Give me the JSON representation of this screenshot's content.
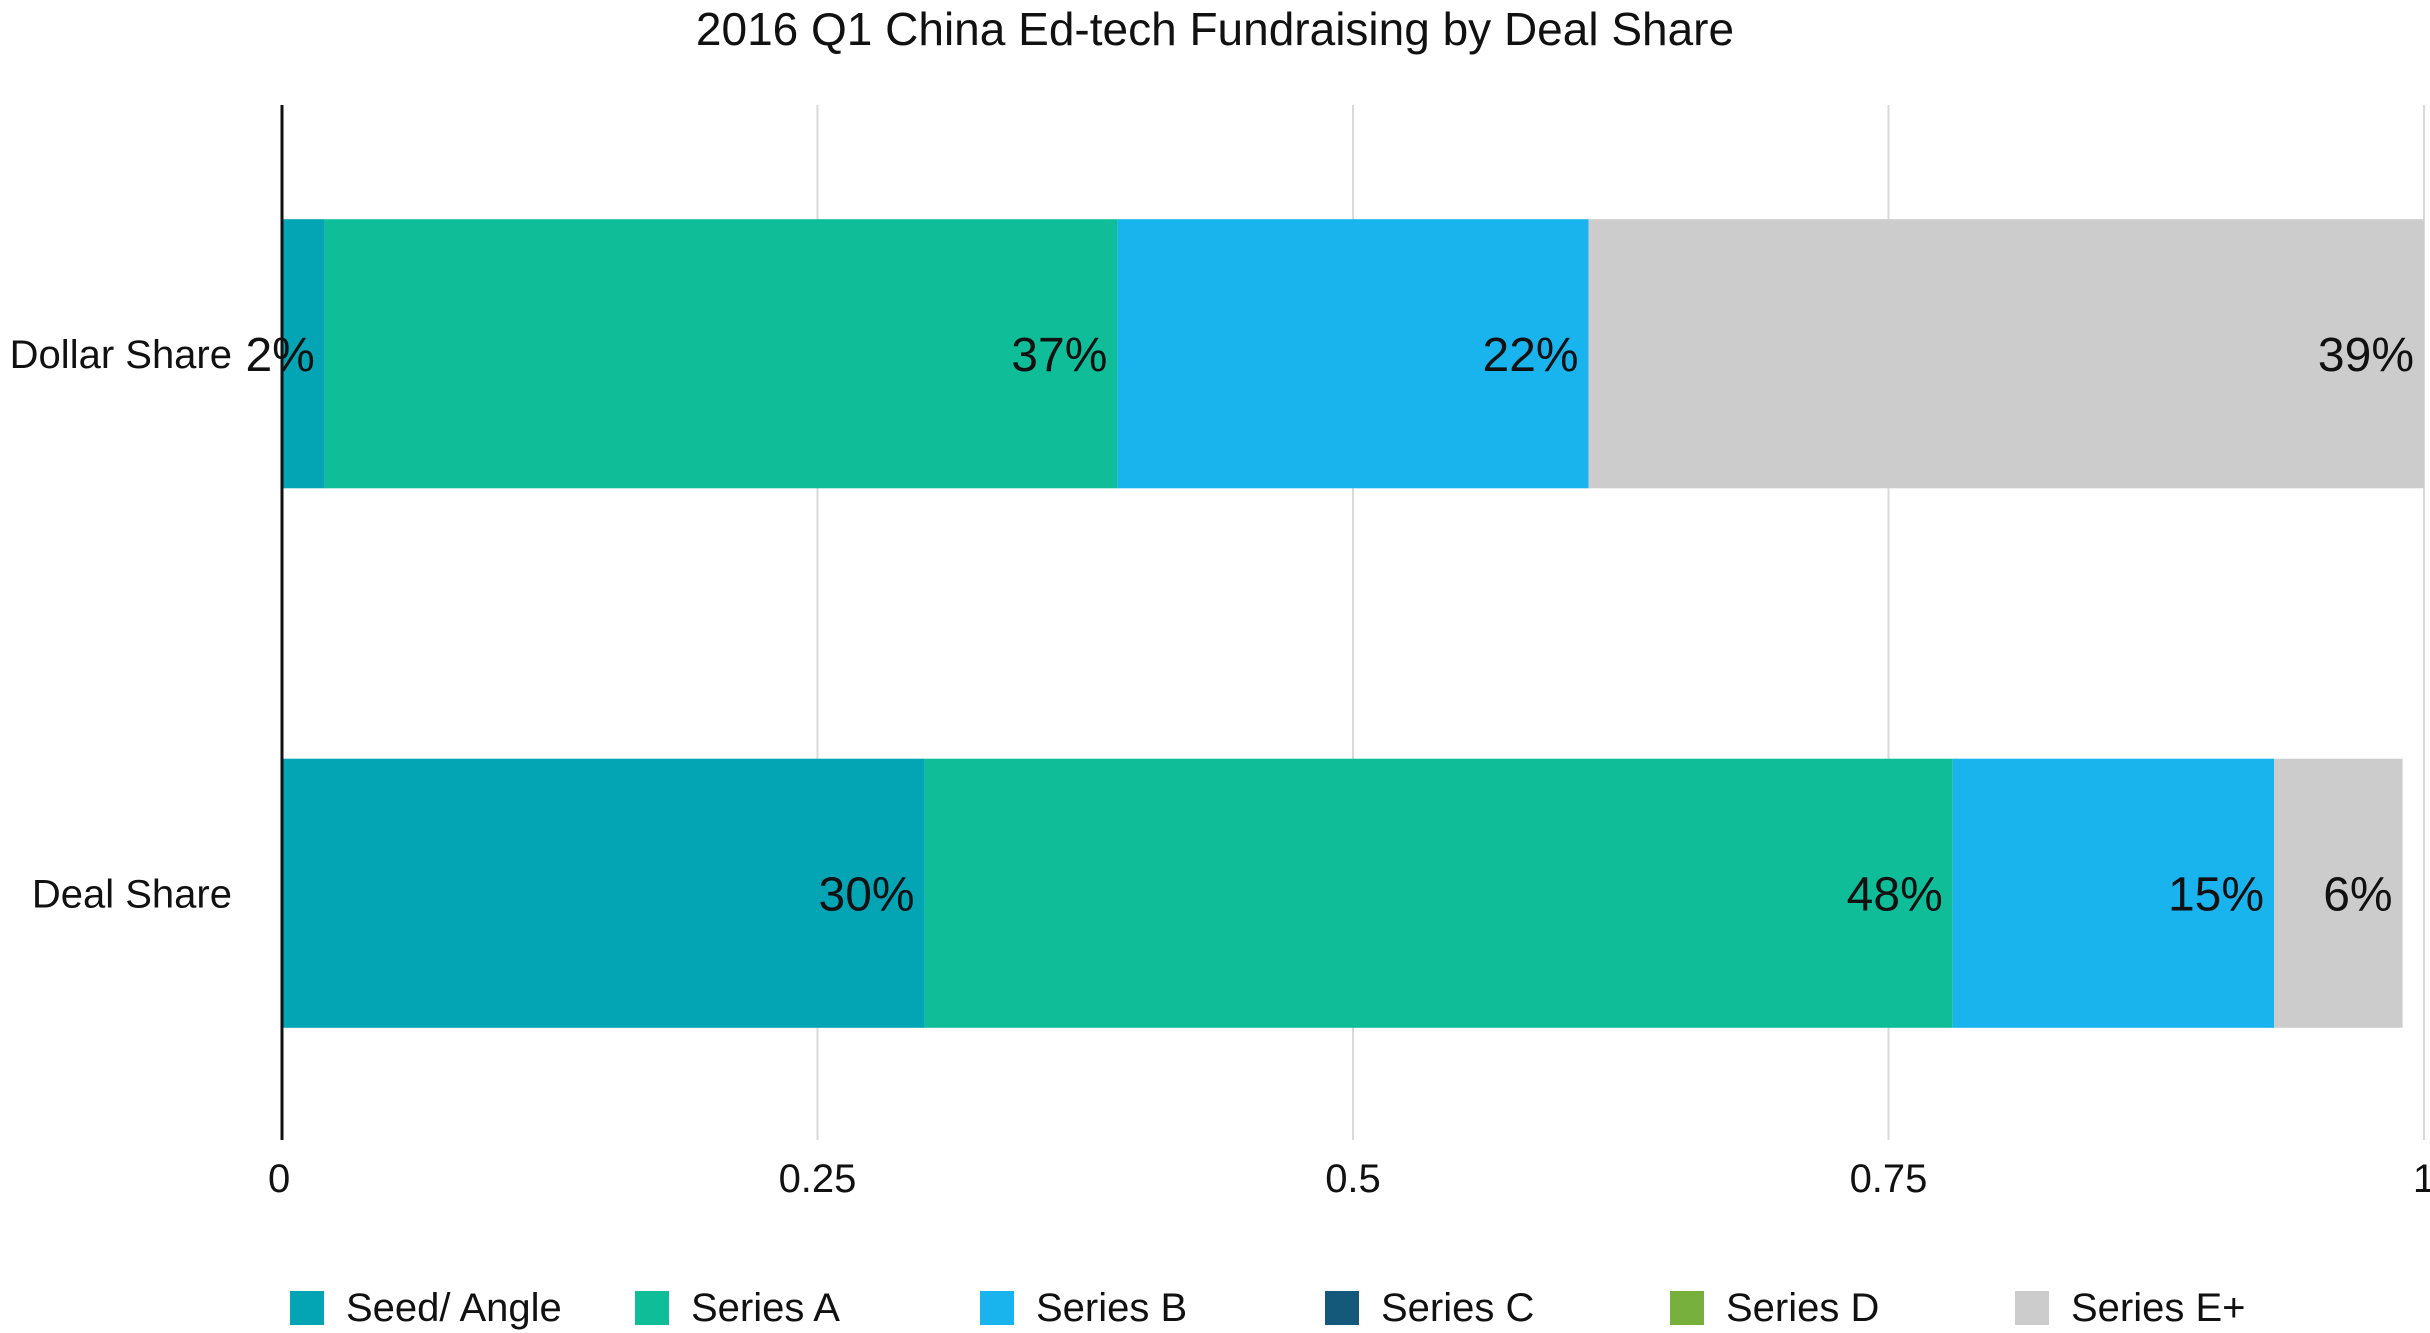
{
  "chart_data": {
    "type": "bar",
    "orientation": "horizontal",
    "stacked": true,
    "title": "2016 Q1 China Ed-tech Fundraising by Deal Share",
    "xlabel": "",
    "ylabel": "",
    "xlim": [
      0,
      1
    ],
    "x_ticks": [
      {
        "value": 0,
        "label": "0"
      },
      {
        "value": 0.25,
        "label": "0.25"
      },
      {
        "value": 0.5,
        "label": "0.5"
      },
      {
        "value": 0.75,
        "label": "0.75"
      },
      {
        "value": 1,
        "label": "1"
      }
    ],
    "grid": true,
    "legend_position": "bottom",
    "categories": [
      "Dollar Share",
      "Deal Share"
    ],
    "series": [
      {
        "name": "Seed/ Angle",
        "color": "#03a5b5",
        "values": [
          0.02,
          0.3
        ],
        "labels": [
          "2%",
          "30%"
        ]
      },
      {
        "name": "Series A",
        "color": "#0fbd98",
        "values": [
          0.37,
          0.48
        ],
        "labels": [
          "37%",
          "48%"
        ]
      },
      {
        "name": "Series B",
        "color": "#19b4ed",
        "values": [
          0.22,
          0.15
        ],
        "labels": [
          "22%",
          "15%"
        ]
      },
      {
        "name": "Series C",
        "color": "#14597a",
        "values": [
          0,
          0
        ],
        "labels": [
          "",
          ""
        ]
      },
      {
        "name": "Series D",
        "color": "#78b03d",
        "values": [
          0,
          0
        ],
        "labels": [
          "",
          ""
        ]
      },
      {
        "name": "Series E+",
        "color": "#cccccc",
        "values": [
          0.39,
          0.06
        ],
        "labels": [
          "39%",
          "6%"
        ]
      }
    ]
  }
}
